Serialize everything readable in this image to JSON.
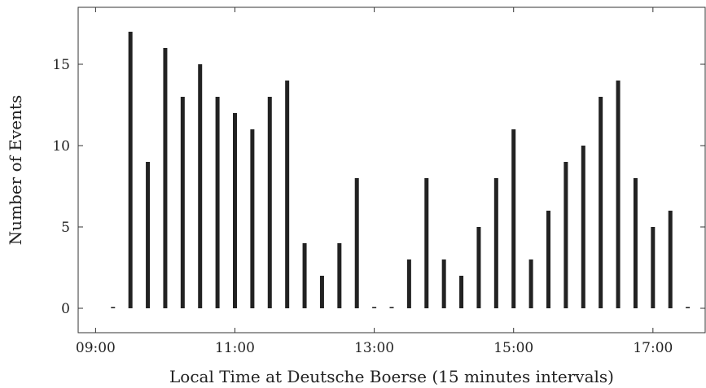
{
  "chart_data": {
    "type": "bar",
    "xlabel": "Local Time at Deutsche Boerse (15 minutes intervals)",
    "ylabel": "Number of Events",
    "x_unit": "hours",
    "xlim": [
      8.75,
      17.75
    ],
    "ylim": [
      -1.5,
      18.5
    ],
    "xticks": [
      9,
      11,
      13,
      15,
      17
    ],
    "xtick_labels": [
      "09:00",
      "11:00",
      "13:00",
      "15:00",
      "17:00"
    ],
    "yticks": [
      0,
      5,
      10,
      15
    ],
    "ytick_labels": [
      "0",
      "5",
      "10",
      "15"
    ],
    "categories": [
      "09:15",
      "09:30",
      "09:45",
      "10:00",
      "10:15",
      "10:30",
      "10:45",
      "11:00",
      "11:15",
      "11:30",
      "11:45",
      "12:00",
      "12:15",
      "12:30",
      "12:45",
      "13:00",
      "13:15",
      "13:30",
      "13:45",
      "14:00",
      "14:15",
      "14:30",
      "14:45",
      "15:00",
      "15:15",
      "15:30",
      "15:45",
      "16:00",
      "16:15",
      "16:30",
      "16:45",
      "17:00",
      "17:15",
      "17:30"
    ],
    "x": [
      9.25,
      9.5,
      9.75,
      10.0,
      10.25,
      10.5,
      10.75,
      11.0,
      11.25,
      11.5,
      11.75,
      12.0,
      12.25,
      12.5,
      12.75,
      13.0,
      13.25,
      13.5,
      13.75,
      14.0,
      14.25,
      14.5,
      14.75,
      15.0,
      15.25,
      15.5,
      15.75,
      16.0,
      16.25,
      16.5,
      16.75,
      17.0,
      17.25,
      17.5
    ],
    "values": [
      0,
      17,
      9,
      16,
      13,
      15,
      13,
      12,
      11,
      13,
      14,
      4,
      2,
      4,
      8,
      0,
      0,
      3,
      8,
      3,
      2,
      5,
      8,
      11,
      3,
      6,
      9,
      10,
      13,
      14,
      8,
      5,
      6,
      0
    ],
    "bar_color": "#222222",
    "grid": false
  }
}
